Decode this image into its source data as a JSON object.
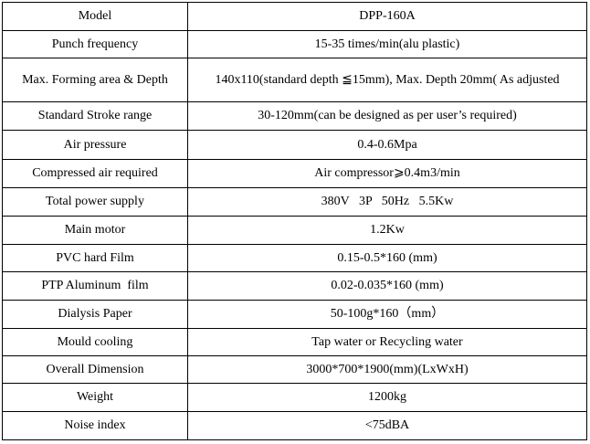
{
  "table": {
    "rows": [
      [
        "Model",
        "DPP-160A"
      ],
      [
        "Punch frequency",
        "15-35 times/min(alu plastic)"
      ],
      [
        "Max. Forming area & Depth",
        "140x110(standard depth ≦15mm), Max. Depth 20mm( As adjusted"
      ],
      [
        "Standard Stroke range",
        "30-120mm(can be designed as per user’s required)"
      ],
      [
        "Air pressure",
        "0.4-0.6Mpa"
      ],
      [
        "Compressed air required",
        "Air compressor⩾0.4m3/min"
      ],
      [
        "Total power supply",
        "380V   3P   50Hz   5.5Kw"
      ],
      [
        "Main motor",
        "1.2Kw"
      ],
      [
        "PVC hard Film",
        "0.15-0.5*160 (mm)"
      ],
      [
        "PTP Aluminum  film",
        "0.02-0.035*160 (mm)"
      ],
      [
        "Dialysis Paper",
        "50-100g*160（mm）"
      ],
      [
        "Mould cooling",
        "Tap water or Recycling water"
      ],
      [
        "Overall Dimension",
        "3000*700*1900(mm)(LxWxH)"
      ],
      [
        "Weight",
        "1200kg"
      ],
      [
        "Noise index",
        "<75dBA"
      ]
    ]
  }
}
